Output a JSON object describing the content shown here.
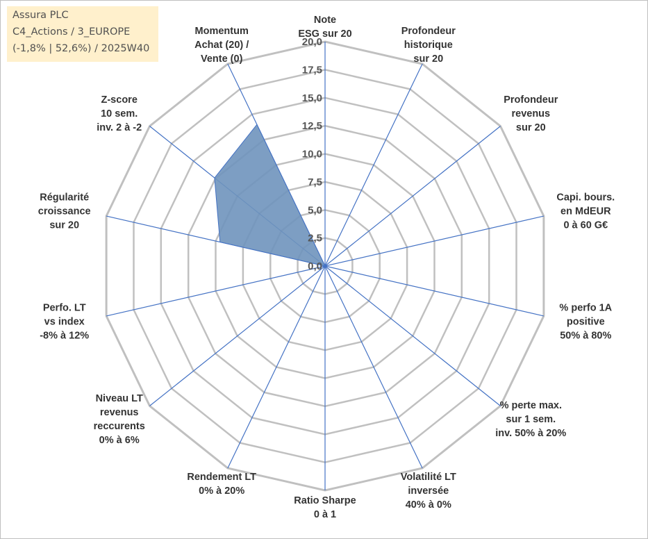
{
  "info": {
    "company": "Assura PLC",
    "category": "C4_Actions / 3_EUROPE",
    "perf": "(-1,8% | 52,6%) / 2025W40"
  },
  "chart_data": {
    "type": "radar",
    "rmin": 0,
    "rmax": 20,
    "tick_labels": [
      "0,0",
      "2,5",
      "5,0",
      "7,5",
      "10,0",
      "12,5",
      "15,0",
      "17,5",
      "20,0"
    ],
    "axes": [
      {
        "lines": [
          "Note",
          "ESG sur 20"
        ]
      },
      {
        "lines": [
          "Profondeur",
          "historique",
          "sur 20"
        ]
      },
      {
        "lines": [
          "Profondeur",
          "revenus",
          "sur 20"
        ]
      },
      {
        "lines": [
          "Capi. bours.",
          "en MdEUR",
          "0 à 60 G€"
        ]
      },
      {
        "lines": [
          "% perfo 1A",
          "positive",
          "50% à 80%"
        ]
      },
      {
        "lines": [
          "% perte max.",
          "sur 1 sem.",
          "inv. 50% à 20%"
        ]
      },
      {
        "lines": [
          "Volatilité LT",
          "inversée",
          "40% à 0%"
        ]
      },
      {
        "lines": [
          "Ratio Sharpe",
          "0 à 1"
        ]
      },
      {
        "lines": [
          "Rendement LT",
          "0% à 20%"
        ]
      },
      {
        "lines": [
          "Niveau LT",
          "revenus",
          "reccurents",
          "0% à 6%"
        ]
      },
      {
        "lines": [
          "Perfo. LT",
          "vs index",
          "-8% à 12%"
        ]
      },
      {
        "lines": [
          "Régularité",
          "croissance",
          "sur 20"
        ]
      },
      {
        "lines": [
          "Z-score",
          "10 sem.",
          "inv. 2 à -2"
        ]
      },
      {
        "lines": [
          "Momentum",
          "Achat (20) /",
          "Vente (0)"
        ]
      }
    ],
    "series": [
      {
        "values": [
          0,
          0,
          0,
          0,
          0,
          0,
          0,
          0,
          0,
          0,
          0,
          9.6,
          12.6,
          14.0
        ]
      }
    ],
    "colors": {
      "fill": "#6f93bd",
      "stroke": "#4472c4",
      "grid": "#c0c0c0",
      "spoke": "#4472c4"
    }
  }
}
